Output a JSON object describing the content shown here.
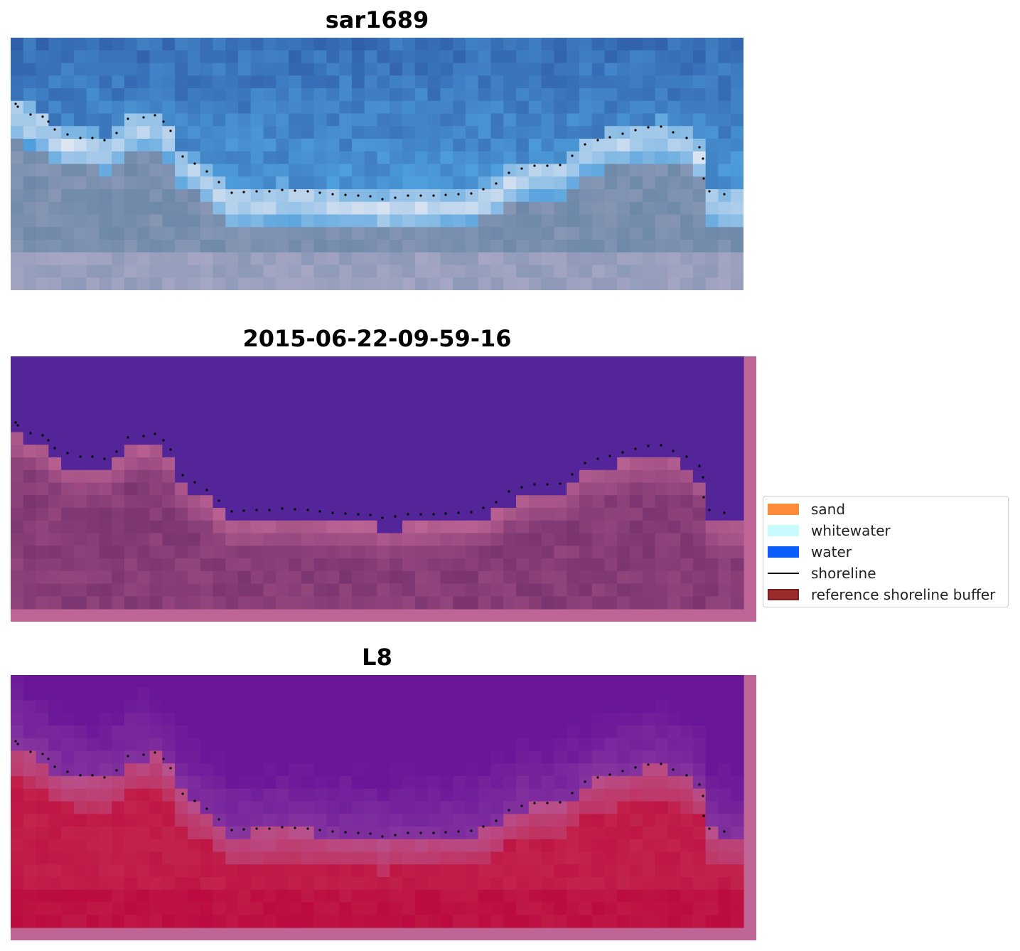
{
  "panels": [
    {
      "title": "sar1689"
    },
    {
      "title": "2015-06-22-09-59-16"
    },
    {
      "title": "L8"
    }
  ],
  "legend": {
    "items": [
      {
        "label": "sand",
        "color": "#ff8c3a",
        "kind": "patch"
      },
      {
        "label": "whitewater",
        "color": "#c8fcfc",
        "kind": "patch"
      },
      {
        "label": "water",
        "color": "#0a5cff",
        "kind": "patch"
      },
      {
        "label": "shoreline",
        "color": "#000000",
        "kind": "line"
      },
      {
        "label": "reference shoreline buffer",
        "color": "#9b2b2b",
        "kind": "patch"
      }
    ]
  },
  "colors": {
    "rgb_water_deep": "#2f5ea8",
    "rgb_water_light": "#4f9fdc",
    "rgb_whitewater": "#dfe6f2",
    "rgb_land": "#6d88a8",
    "class_water": "#532599",
    "class_land": "#7a3470",
    "class_buffer": "#bf6595",
    "mndwi_water": "#6a1699",
    "mndwi_land": "#c2244c"
  }
}
